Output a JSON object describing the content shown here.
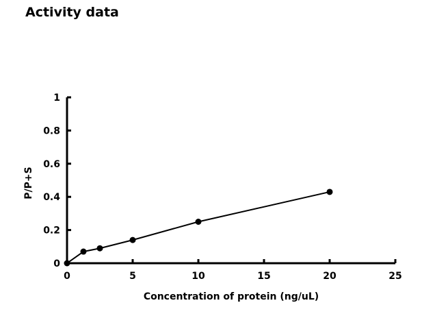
{
  "figure": {
    "title": "Activity data"
  },
  "chart_data": {
    "type": "line",
    "title": "Activity data",
    "xlabel": "Concentration of protein (ng/uL)",
    "ylabel": "P/P+S",
    "x": [
      0,
      1.25,
      2.5,
      5,
      10,
      20
    ],
    "y": [
      0,
      0.07,
      0.09,
      0.14,
      0.25,
      0.43
    ],
    "xlim": [
      0,
      25
    ],
    "ylim": [
      0,
      1
    ],
    "x_ticks": [
      0,
      5,
      10,
      15,
      20,
      25
    ],
    "y_ticks": [
      0,
      0.2,
      0.4,
      0.6,
      0.8,
      1
    ],
    "grid": false,
    "legend": "none",
    "marker": "filled-circle",
    "line_color": "#000000",
    "marker_color": "#000000",
    "axis_color": "#000000",
    "background_color": "#ffffff"
  }
}
